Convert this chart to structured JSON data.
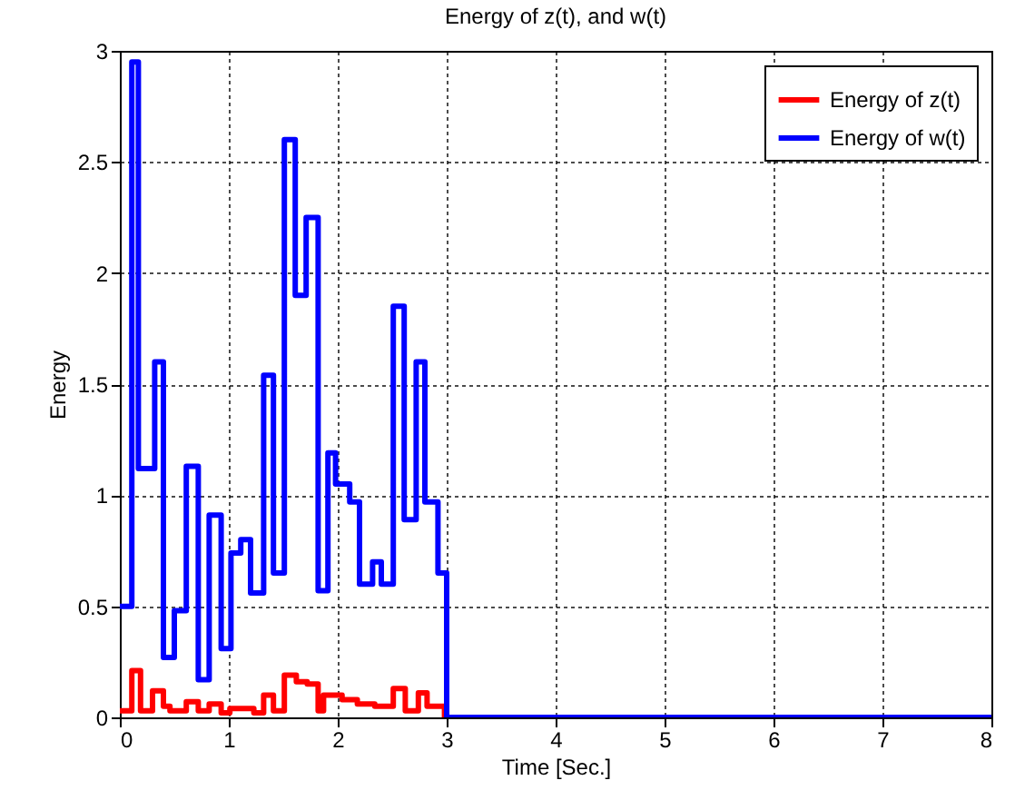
{
  "chart_data": {
    "type": "step",
    "title": "Energy of z(t), and  w(t)",
    "xlabel": "Time [Sec.]",
    "ylabel": "Energy",
    "xlim": [
      0,
      8
    ],
    "xticks": [
      0,
      1,
      2,
      3,
      4,
      5,
      6,
      7,
      8
    ],
    "ylim": [
      0,
      3
    ],
    "yticks": [
      0,
      0.5,
      1,
      1.5,
      2,
      2.5,
      3
    ],
    "grid": true,
    "legend": "top right",
    "series": [
      {
        "name": "Energy of z(t)",
        "color": "#ff0000",
        "x": [
          0,
          0.11,
          0.19,
          0.3,
          0.4,
          0.46,
          0.61,
          0.72,
          0.82,
          0.93,
          1.01,
          1.23,
          1.32,
          1.41,
          1.51,
          1.62,
          1.72,
          1.82,
          1.87,
          2.04,
          2.18,
          2.34,
          2.51,
          2.62,
          2.74,
          2.82,
          2.98,
          8
        ],
        "values": [
          0.03,
          0.21,
          0.03,
          0.12,
          0.05,
          0.03,
          0.07,
          0.03,
          0.06,
          0.02,
          0.04,
          0.02,
          0.1,
          0.03,
          0.19,
          0.16,
          0.15,
          0.03,
          0.1,
          0.08,
          0.06,
          0.05,
          0.13,
          0.03,
          0.11,
          0.05,
          0,
          0
        ]
      },
      {
        "name": "Energy of w(t)",
        "color": "#0000ff",
        "x": [
          0,
          0.11,
          0.17,
          0.32,
          0.4,
          0.5,
          0.61,
          0.72,
          0.82,
          0.93,
          1.02,
          1.11,
          1.2,
          1.32,
          1.41,
          1.51,
          1.61,
          1.71,
          1.82,
          1.91,
          1.98,
          2.11,
          2.2,
          2.32,
          2.4,
          2.51,
          2.61,
          2.72,
          2.8,
          2.92,
          3.0,
          8
        ],
        "values": [
          0.5,
          2.95,
          1.12,
          1.6,
          0.27,
          0.48,
          1.13,
          0.17,
          0.91,
          0.31,
          0.74,
          0.8,
          0.56,
          1.54,
          0.65,
          2.6,
          1.9,
          2.25,
          0.57,
          1.19,
          1.05,
          0.97,
          0.6,
          0.7,
          0.6,
          1.85,
          0.89,
          1.6,
          0.97,
          0.65,
          0,
          0
        ]
      }
    ]
  }
}
